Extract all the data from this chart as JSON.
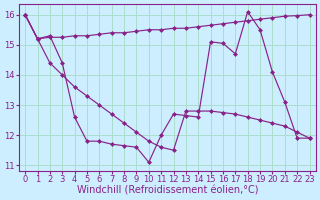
{
  "background_color": "#cceeff",
  "grid_color": "#aaddcc",
  "line_color": "#882288",
  "xlabel": "Windchill (Refroidissement éolien,°C)",
  "xlim": [
    -0.5,
    23.5
  ],
  "ylim": [
    10.8,
    16.35
  ],
  "yticks": [
    11,
    12,
    13,
    14,
    15,
    16
  ],
  "xticks": [
    0,
    1,
    2,
    3,
    4,
    5,
    6,
    7,
    8,
    9,
    10,
    11,
    12,
    13,
    14,
    15,
    16,
    17,
    18,
    19,
    20,
    21,
    22,
    23
  ],
  "series1_x": [
    0,
    1,
    2,
    3,
    4,
    5,
    6,
    7,
    8,
    9,
    10,
    11,
    12,
    13,
    14,
    15,
    16,
    17,
    18,
    19,
    20,
    21,
    22,
    23
  ],
  "series1_y": [
    16.0,
    15.2,
    15.3,
    14.4,
    12.6,
    11.8,
    11.8,
    11.7,
    11.65,
    11.6,
    11.1,
    12.0,
    12.7,
    12.65,
    12.6,
    15.1,
    15.05,
    14.7,
    16.1,
    15.5,
    14.1,
    13.1,
    11.9,
    11.9
  ],
  "series2_x": [
    0,
    1,
    2,
    3,
    4,
    5,
    6,
    7,
    8,
    9,
    10,
    11,
    12,
    13,
    14,
    15,
    16,
    17,
    18,
    19,
    20,
    21,
    22,
    23
  ],
  "series2_y": [
    16.0,
    15.2,
    15.25,
    15.25,
    15.3,
    15.3,
    15.35,
    15.4,
    15.4,
    15.45,
    15.5,
    15.5,
    15.55,
    15.55,
    15.6,
    15.65,
    15.7,
    15.75,
    15.8,
    15.85,
    15.9,
    15.95,
    15.97,
    16.0
  ],
  "series3_x": [
    0,
    1,
    2,
    3,
    4,
    5,
    6,
    7,
    8,
    9,
    10,
    11,
    12,
    13,
    14,
    15,
    16,
    17,
    18,
    19,
    20,
    21,
    22,
    23
  ],
  "series3_y": [
    16.0,
    15.2,
    14.4,
    14.0,
    13.6,
    13.3,
    13.0,
    12.7,
    12.4,
    12.1,
    11.8,
    11.6,
    11.5,
    12.8,
    12.8,
    12.8,
    12.75,
    12.7,
    12.6,
    12.5,
    12.4,
    12.3,
    12.1,
    11.9
  ],
  "fontsize_label": 7,
  "fontsize_tick": 6,
  "marker": "D",
  "markersize": 2
}
